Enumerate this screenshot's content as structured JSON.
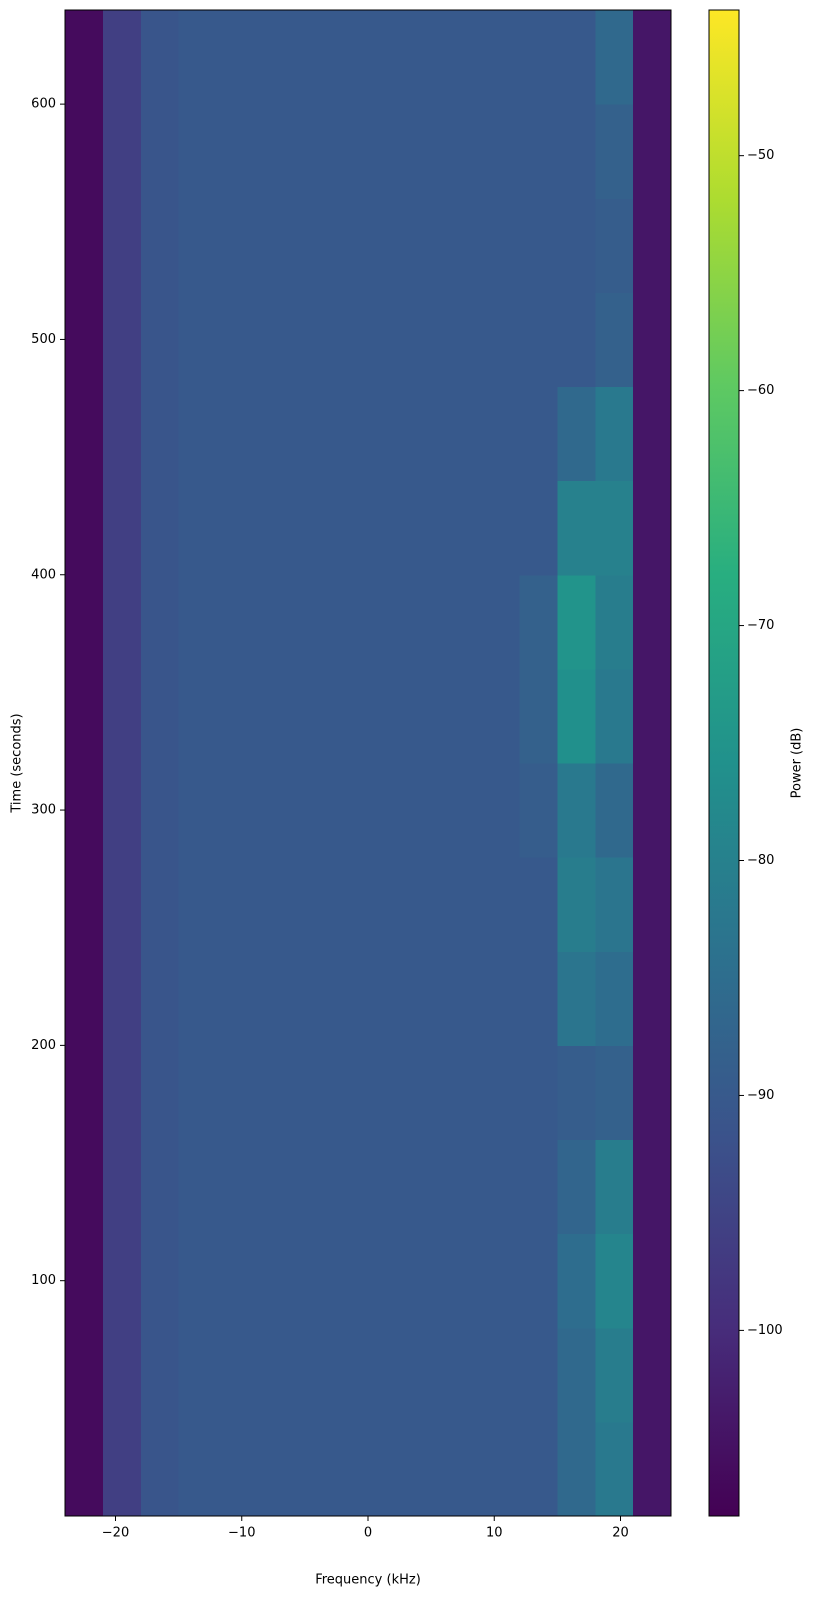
{
  "chart_data": {
    "type": "heatmap",
    "xlabel": "Frequency (kHz)",
    "ylabel": "Time (seconds)",
    "colorbar_label": "Power (dB)",
    "colormap": "viridis",
    "x_edges": [
      -24,
      -21,
      -18,
      -15,
      -12,
      -9,
      -6,
      -3,
      0,
      3,
      6,
      9,
      12,
      15,
      18,
      21,
      24
    ],
    "y_edges": [
      0,
      40,
      80,
      120,
      160,
      200,
      240,
      280,
      320,
      360,
      400,
      440,
      480,
      520,
      560,
      600,
      640
    ],
    "z": [
      [
        -106,
        -96,
        -91,
        -90,
        -90,
        -90,
        -90,
        -90,
        -90,
        -90,
        -90,
        -90,
        -90,
        -86,
        -82,
        -104
      ],
      [
        -106,
        -96,
        -91,
        -90,
        -90,
        -90,
        -90,
        -90,
        -90,
        -90,
        -90,
        -90,
        -90,
        -86,
        -81,
        -104
      ],
      [
        -106,
        -96,
        -91,
        -90,
        -90,
        -90,
        -90,
        -90,
        -90,
        -90,
        -90,
        -90,
        -90,
        -85,
        -79,
        -104
      ],
      [
        -106,
        -96,
        -91,
        -90,
        -90,
        -90,
        -90,
        -90,
        -90,
        -90,
        -90,
        -90,
        -90,
        -87,
        -81,
        -104
      ],
      [
        -106,
        -96,
        -91,
        -90,
        -90,
        -90,
        -90,
        -90,
        -90,
        -90,
        -90,
        -90,
        -90,
        -89,
        -88,
        -104
      ],
      [
        -106,
        -96,
        -91,
        -90,
        -90,
        -90,
        -90,
        -90,
        -90,
        -90,
        -90,
        -90,
        -90,
        -83,
        -85,
        -104
      ],
      [
        -106,
        -96,
        -91,
        -90,
        -90,
        -90,
        -90,
        -90,
        -90,
        -90,
        -90,
        -90,
        -90,
        -81,
        -83,
        -104
      ],
      [
        -106,
        -96,
        -91,
        -90,
        -90,
        -90,
        -90,
        -90,
        -90,
        -90,
        -90,
        -90,
        -89,
        -82,
        -86,
        -104
      ],
      [
        -106,
        -96,
        -91,
        -90,
        -90,
        -90,
        -90,
        -90,
        -90,
        -90,
        -90,
        -90,
        -88,
        -76,
        -82,
        -104
      ],
      [
        -106,
        -96,
        -91,
        -90,
        -90,
        -90,
        -90,
        -90,
        -90,
        -90,
        -90,
        -90,
        -88,
        -75,
        -81,
        -104
      ],
      [
        -106,
        -96,
        -91,
        -90,
        -90,
        -90,
        -90,
        -90,
        -90,
        -90,
        -90,
        -90,
        -90,
        -80,
        -80,
        -104
      ],
      [
        -106,
        -96,
        -91,
        -90,
        -90,
        -90,
        -90,
        -90,
        -90,
        -90,
        -90,
        -90,
        -90,
        -86,
        -82,
        -104
      ],
      [
        -106,
        -96,
        -91,
        -90,
        -90,
        -90,
        -90,
        -90,
        -90,
        -90,
        -90,
        -90,
        -90,
        -90,
        -88,
        -104
      ],
      [
        -106,
        -96,
        -91,
        -90,
        -90,
        -90,
        -90,
        -90,
        -90,
        -90,
        -90,
        -90,
        -90,
        -90,
        -89,
        -104
      ],
      [
        -106,
        -96,
        -91,
        -90,
        -90,
        -90,
        -90,
        -90,
        -90,
        -90,
        -90,
        -90,
        -90,
        -90,
        -88,
        -104
      ],
      [
        -106,
        -96,
        -91,
        -90,
        -90,
        -90,
        -90,
        -90,
        -90,
        -90,
        -90,
        -90,
        -90,
        -90,
        -86,
        -104
      ]
    ],
    "xlim": [
      -24,
      24
    ],
    "ylim": [
      0,
      640
    ],
    "clim": [
      -107.9,
      -43.8
    ],
    "xticks": [
      {
        "value": -20,
        "label": "−20"
      },
      {
        "value": -10,
        "label": "−10"
      },
      0,
      10,
      20
    ],
    "yticks": [
      100,
      200,
      300,
      400,
      500,
      600
    ],
    "cticks": [
      {
        "value": -100,
        "label": "−100"
      },
      {
        "value": -90,
        "label": "−90"
      },
      {
        "value": -80,
        "label": "−80"
      },
      {
        "value": -70,
        "label": "−70"
      },
      {
        "value": -60,
        "label": "−60"
      },
      {
        "value": -50,
        "label": "−50"
      }
    ]
  }
}
